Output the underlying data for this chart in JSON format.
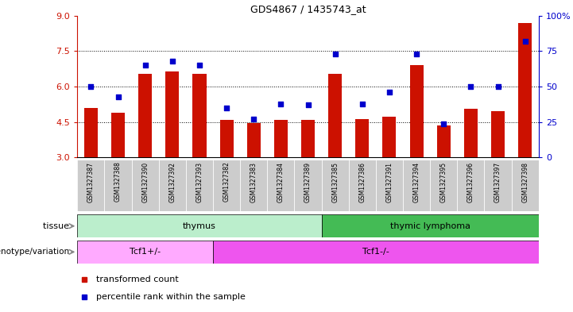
{
  "title": "GDS4867 / 1435743_at",
  "samples": [
    "GSM1327387",
    "GSM1327388",
    "GSM1327390",
    "GSM1327392",
    "GSM1327393",
    "GSM1327382",
    "GSM1327383",
    "GSM1327384",
    "GSM1327389",
    "GSM1327385",
    "GSM1327386",
    "GSM1327391",
    "GSM1327394",
    "GSM1327395",
    "GSM1327396",
    "GSM1327397",
    "GSM1327398"
  ],
  "bar_values": [
    5.1,
    4.9,
    6.55,
    6.65,
    6.55,
    4.6,
    4.45,
    4.6,
    4.58,
    6.55,
    4.63,
    4.73,
    6.9,
    4.35,
    5.05,
    4.95,
    8.7
  ],
  "dot_values": [
    50,
    43,
    65,
    68,
    65,
    35,
    27,
    38,
    37,
    73,
    38,
    46,
    73,
    24,
    50,
    50,
    82
  ],
  "bar_color": "#CC1100",
  "dot_color": "#0000CC",
  "ylim_left": [
    3,
    9
  ],
  "ylim_right": [
    0,
    100
  ],
  "yticks_left": [
    3,
    4.5,
    6,
    7.5,
    9
  ],
  "yticks_right": [
    0,
    25,
    50,
    75,
    100
  ],
  "ytick_right_labels": [
    "0",
    "25",
    "50",
    "75",
    "100%"
  ],
  "hlines": [
    4.5,
    6.0,
    7.5
  ],
  "tissue_groups": [
    {
      "label": "thymus",
      "start": 0,
      "end": 9,
      "color": "#BBEECC"
    },
    {
      "label": "thymic lymphoma",
      "start": 9,
      "end": 17,
      "color": "#44BB55"
    }
  ],
  "genotype_groups": [
    {
      "label": "Tcf1+/-",
      "start": 0,
      "end": 5,
      "color": "#FFAAFF"
    },
    {
      "label": "Tcf1-/-",
      "start": 5,
      "end": 17,
      "color": "#EE55EE"
    }
  ],
  "legend_items": [
    {
      "color": "#CC1100",
      "label": "transformed count"
    },
    {
      "color": "#0000CC",
      "label": "percentile rank within the sample"
    }
  ],
  "tissue_label": "tissue",
  "genotype_label": "genotype/variation",
  "bar_width": 0.5,
  "bar_bottom": 3.0,
  "xtick_bg_color": "#CCCCCC"
}
